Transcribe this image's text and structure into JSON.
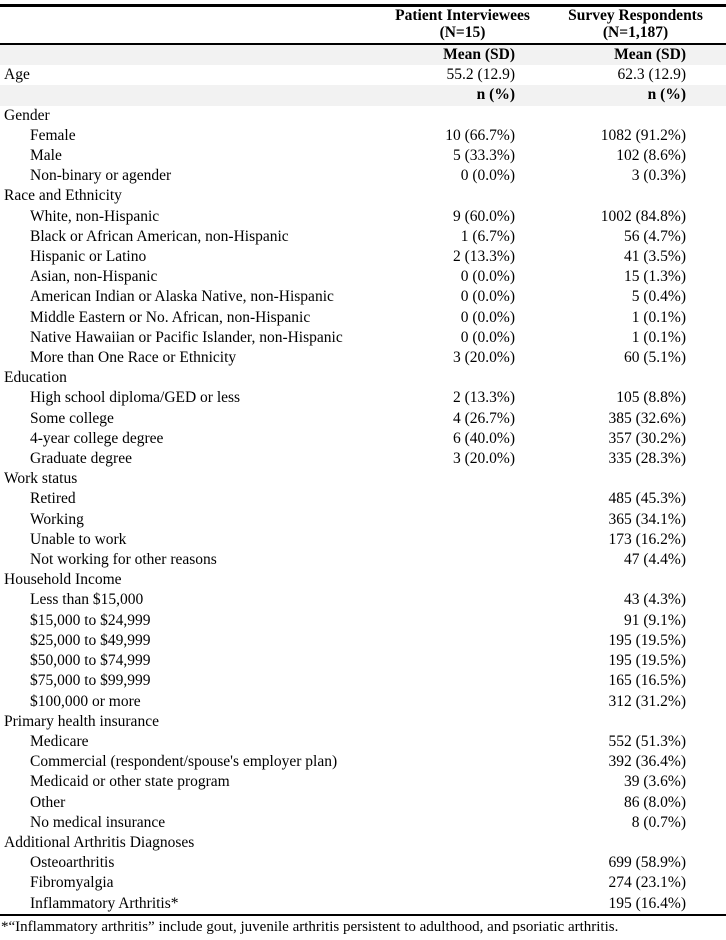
{
  "header": {
    "columns": [
      {
        "title": "Patient Interviewees",
        "n": "(N=15)"
      },
      {
        "title": "Survey Respondents",
        "n": "(N=1,187)"
      }
    ]
  },
  "rows": [
    {
      "label": "",
      "indent": false,
      "shaded": true,
      "bold": true,
      "patient": "Mean (SD)",
      "survey": "Mean (SD)"
    },
    {
      "label": "Age",
      "indent": false,
      "shaded": false,
      "bold": false,
      "patient": "55.2 (12.9)",
      "survey": "62.3 (12.9)"
    },
    {
      "label": "",
      "indent": false,
      "shaded": true,
      "bold": true,
      "patient": "n (%)",
      "survey": "n (%)"
    },
    {
      "label": "Gender",
      "indent": false,
      "shaded": false,
      "bold": false,
      "patient": "",
      "survey": ""
    },
    {
      "label": "Female",
      "indent": true,
      "shaded": false,
      "bold": false,
      "patient": "10 (66.7%)",
      "survey": "1082 (91.2%)"
    },
    {
      "label": "Male",
      "indent": true,
      "shaded": false,
      "bold": false,
      "patient": "5 (33.3%)",
      "survey": "102 (8.6%)"
    },
    {
      "label": "Non-binary or agender",
      "indent": true,
      "shaded": false,
      "bold": false,
      "patient": "0 (0.0%)",
      "survey": "3 (0.3%)"
    },
    {
      "label": "Race and Ethnicity",
      "indent": false,
      "shaded": false,
      "bold": false,
      "patient": "",
      "survey": ""
    },
    {
      "label": "White, non-Hispanic",
      "indent": true,
      "shaded": false,
      "bold": false,
      "patient": "9 (60.0%)",
      "survey": "1002 (84.8%)"
    },
    {
      "label": "Black or African American, non-Hispanic",
      "indent": true,
      "shaded": false,
      "bold": false,
      "patient": "1 (6.7%)",
      "survey": "56 (4.7%)"
    },
    {
      "label": "Hispanic or Latino",
      "indent": true,
      "shaded": false,
      "bold": false,
      "patient": "2 (13.3%)",
      "survey": "41 (3.5%)"
    },
    {
      "label": "Asian, non-Hispanic",
      "indent": true,
      "shaded": false,
      "bold": false,
      "patient": "0 (0.0%)",
      "survey": "15 (1.3%)"
    },
    {
      "label": "American Indian or Alaska Native, non-Hispanic",
      "indent": true,
      "shaded": false,
      "bold": false,
      "patient": "0 (0.0%)",
      "survey": "5 (0.4%)"
    },
    {
      "label": "Middle Eastern or No. African, non-Hispanic",
      "indent": true,
      "shaded": false,
      "bold": false,
      "patient": "0 (0.0%)",
      "survey": "1 (0.1%)"
    },
    {
      "label": "Native Hawaiian or Pacific Islander, non-Hispanic",
      "indent": true,
      "shaded": false,
      "bold": false,
      "patient": "0 (0.0%)",
      "survey": "1 (0.1%)"
    },
    {
      "label": "More than One Race or Ethnicity",
      "indent": true,
      "shaded": false,
      "bold": false,
      "patient": "3 (20.0%)",
      "survey": "60 (5.1%)"
    },
    {
      "label": "Education",
      "indent": false,
      "shaded": false,
      "bold": false,
      "patient": "",
      "survey": ""
    },
    {
      "label": "High school diploma/GED or less",
      "indent": true,
      "shaded": false,
      "bold": false,
      "patient": "2 (13.3%)",
      "survey": "105 (8.8%)"
    },
    {
      "label": "Some college",
      "indent": true,
      "shaded": false,
      "bold": false,
      "patient": "4 (26.7%)",
      "survey": "385 (32.6%)"
    },
    {
      "label": "4-year college degree",
      "indent": true,
      "shaded": false,
      "bold": false,
      "patient": "6 (40.0%)",
      "survey": "357 (30.2%)"
    },
    {
      "label": "Graduate degree",
      "indent": true,
      "shaded": false,
      "bold": false,
      "patient": "3 (20.0%)",
      "survey": "335 (28.3%)"
    },
    {
      "label": "Work status",
      "indent": false,
      "shaded": false,
      "bold": false,
      "patient": "",
      "survey": ""
    },
    {
      "label": "Retired",
      "indent": true,
      "shaded": false,
      "bold": false,
      "patient": "",
      "survey": "485 (45.3%)"
    },
    {
      "label": "Working",
      "indent": true,
      "shaded": false,
      "bold": false,
      "patient": "",
      "survey": "365 (34.1%)"
    },
    {
      "label": "Unable to work",
      "indent": true,
      "shaded": false,
      "bold": false,
      "patient": "",
      "survey": "173 (16.2%)"
    },
    {
      "label": "Not working for other reasons",
      "indent": true,
      "shaded": false,
      "bold": false,
      "patient": "",
      "survey": "47 (4.4%)"
    },
    {
      "label": "Household Income",
      "indent": false,
      "shaded": false,
      "bold": false,
      "patient": "",
      "survey": ""
    },
    {
      "label": "Less than $15,000",
      "indent": true,
      "shaded": false,
      "bold": false,
      "patient": "",
      "survey": "43 (4.3%)"
    },
    {
      "label": "$15,000 to $24,999",
      "indent": true,
      "shaded": false,
      "bold": false,
      "patient": "",
      "survey": "91 (9.1%)"
    },
    {
      "label": "$25,000 to $49,999",
      "indent": true,
      "shaded": false,
      "bold": false,
      "patient": "",
      "survey": "195 (19.5%)"
    },
    {
      "label": "$50,000 to $74,999",
      "indent": true,
      "shaded": false,
      "bold": false,
      "patient": "",
      "survey": "195 (19.5%)"
    },
    {
      "label": "$75,000 to $99,999",
      "indent": true,
      "shaded": false,
      "bold": false,
      "patient": "",
      "survey": "165 (16.5%)"
    },
    {
      "label": "$100,000 or more",
      "indent": true,
      "shaded": false,
      "bold": false,
      "patient": "",
      "survey": "312 (31.2%)"
    },
    {
      "label": "Primary health insurance",
      "indent": false,
      "shaded": false,
      "bold": false,
      "patient": "",
      "survey": ""
    },
    {
      "label": "Medicare",
      "indent": true,
      "shaded": false,
      "bold": false,
      "patient": "",
      "survey": "552 (51.3%)"
    },
    {
      "label": "Commercial (respondent/spouse's employer plan)",
      "indent": true,
      "shaded": false,
      "bold": false,
      "patient": "",
      "survey": "392 (36.4%)"
    },
    {
      "label": "Medicaid or other state program",
      "indent": true,
      "shaded": false,
      "bold": false,
      "patient": "",
      "survey": "39 (3.6%)"
    },
    {
      "label": "Other",
      "indent": true,
      "shaded": false,
      "bold": false,
      "patient": "",
      "survey": "86 (8.0%)"
    },
    {
      "label": "No medical insurance",
      "indent": true,
      "shaded": false,
      "bold": false,
      "patient": "",
      "survey": "8 (0.7%)"
    },
    {
      "label": "Additional Arthritis Diagnoses",
      "indent": false,
      "shaded": false,
      "bold": false,
      "patient": "",
      "survey": ""
    },
    {
      "label": "Osteoarthritis",
      "indent": true,
      "shaded": false,
      "bold": false,
      "patient": "",
      "survey": "699 (58.9%)"
    },
    {
      "label": "Fibromyalgia",
      "indent": true,
      "shaded": false,
      "bold": false,
      "patient": "",
      "survey": "274 (23.1%)"
    },
    {
      "label": "Inflammatory Arthritis*",
      "indent": true,
      "shaded": false,
      "bold": false,
      "patient": "",
      "survey": "195 (16.4%)"
    }
  ],
  "footnote": "*“Inflammatory arthritis” include gout, juvenile arthritis persistent to adulthood, and psoriatic arthritis.",
  "colors": {
    "shaded_row": "#f2f2f2",
    "rule": "#000000"
  }
}
